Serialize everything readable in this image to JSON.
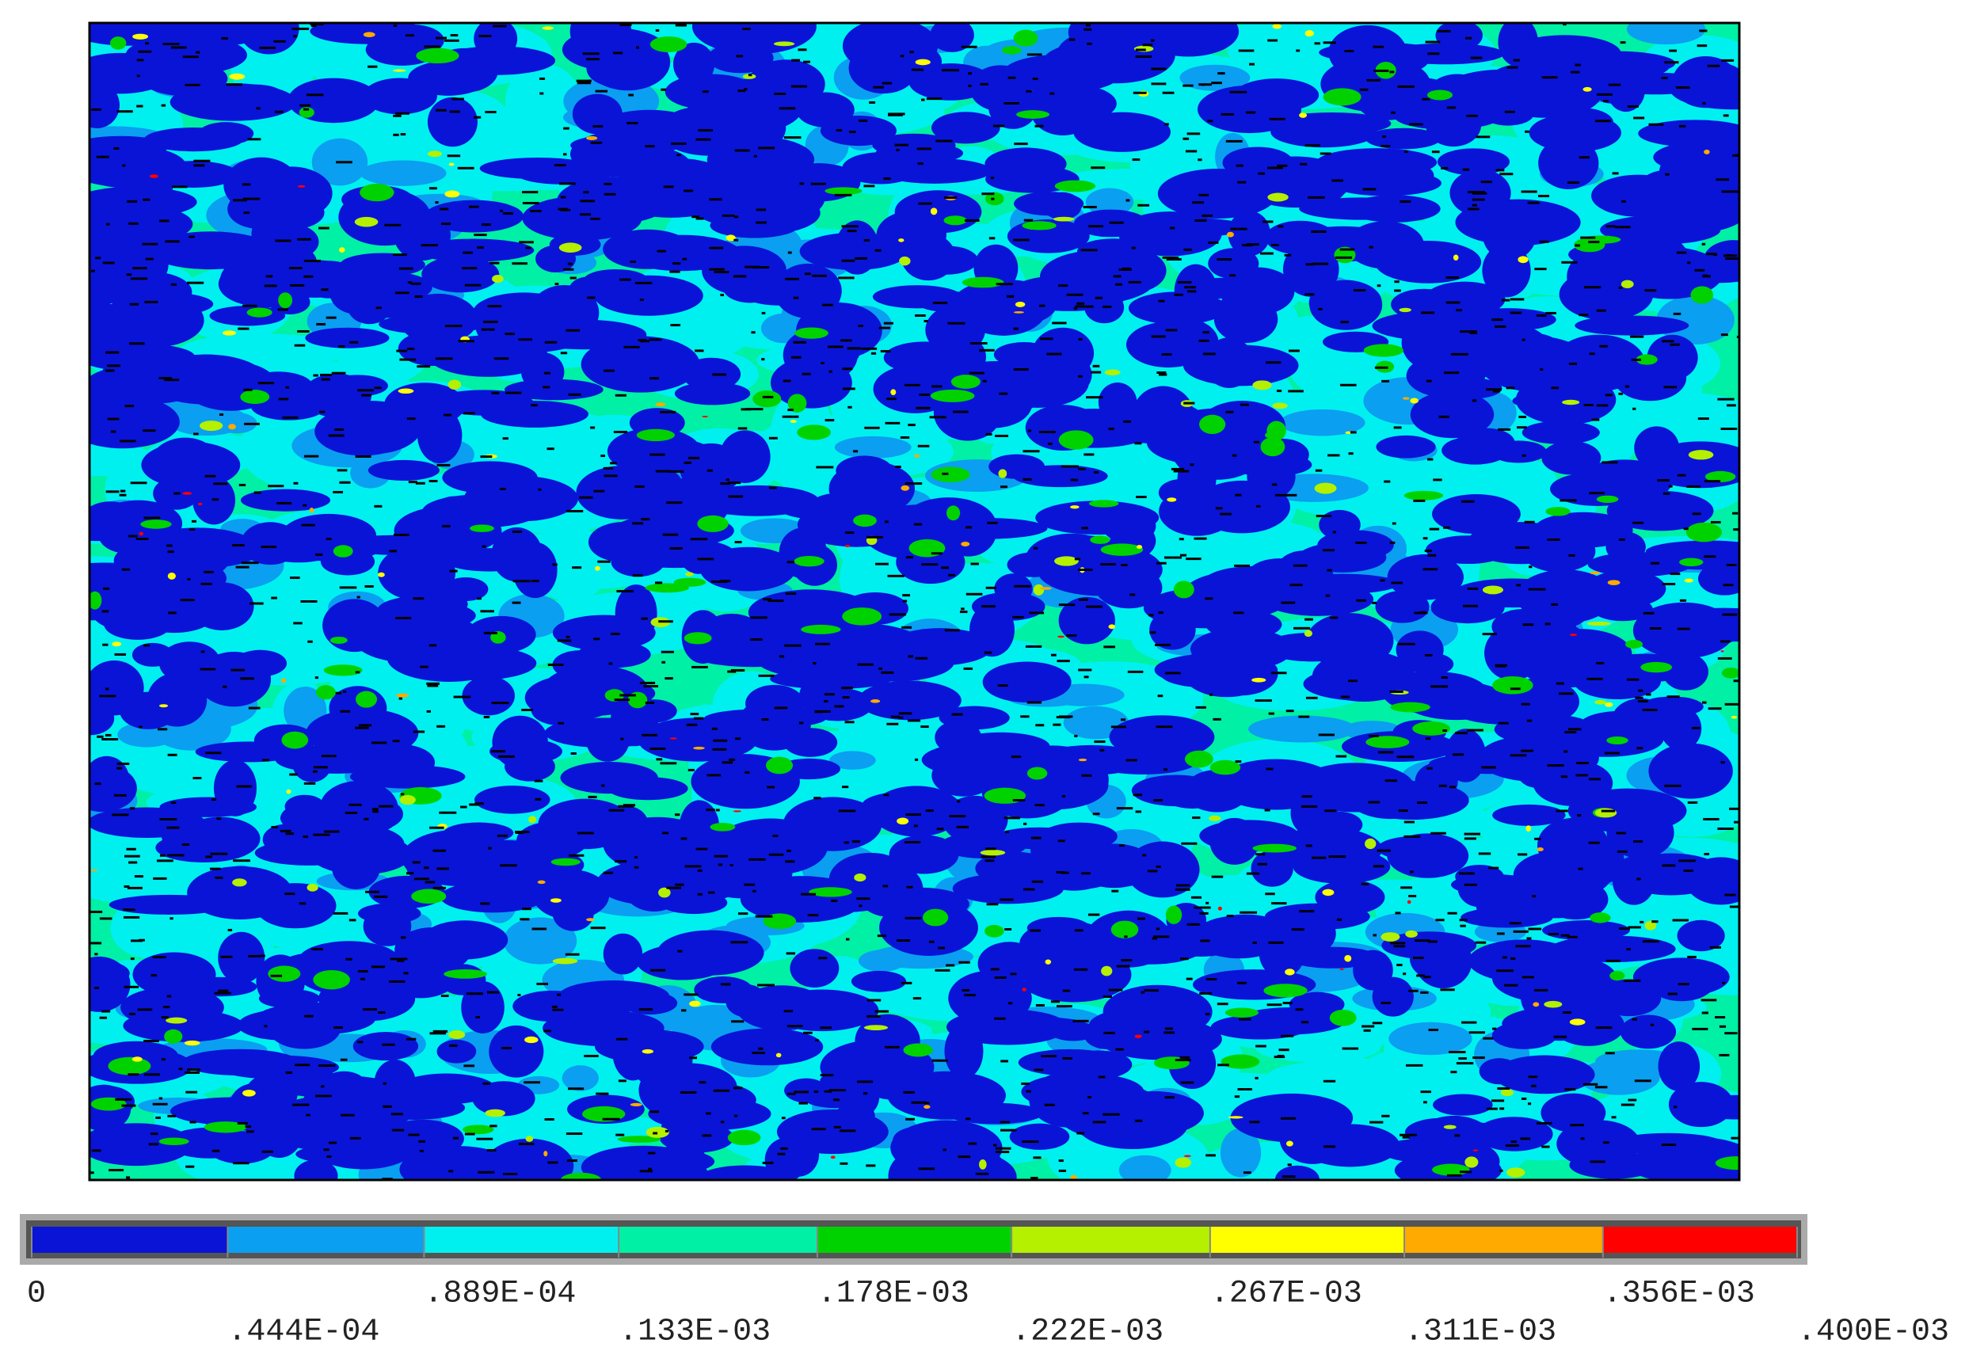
{
  "chart_data": {
    "type": "contour",
    "clim": [
      0,
      0.0004
    ],
    "colorbar_ticks": [
      0,
      {
        "value": 4.44e-05,
        "label": ".444E-04"
      },
      {
        "value": 8.89e-05,
        "label": ".889E-04"
      },
      {
        "value": 0.000133,
        "label": ".133E-03"
      },
      {
        "value": 0.000178,
        "label": ".178E-03"
      },
      {
        "value": 0.000222,
        "label": ".222E-03"
      },
      {
        "value": 0.000267,
        "label": ".267E-03"
      },
      {
        "value": 0.000311,
        "label": ".311E-03"
      },
      {
        "value": 0.000356,
        "label": ".356E-03"
      },
      {
        "value": 0.0004,
        "label": ".400E-03"
      }
    ],
    "colors": [
      "#0a14d7",
      "#0a9ff0",
      "#00f0f0",
      "#00f0a5",
      "#00d200",
      "#b4f000",
      "#ffff00",
      "#ffaa00",
      "#ff0000"
    ]
  }
}
